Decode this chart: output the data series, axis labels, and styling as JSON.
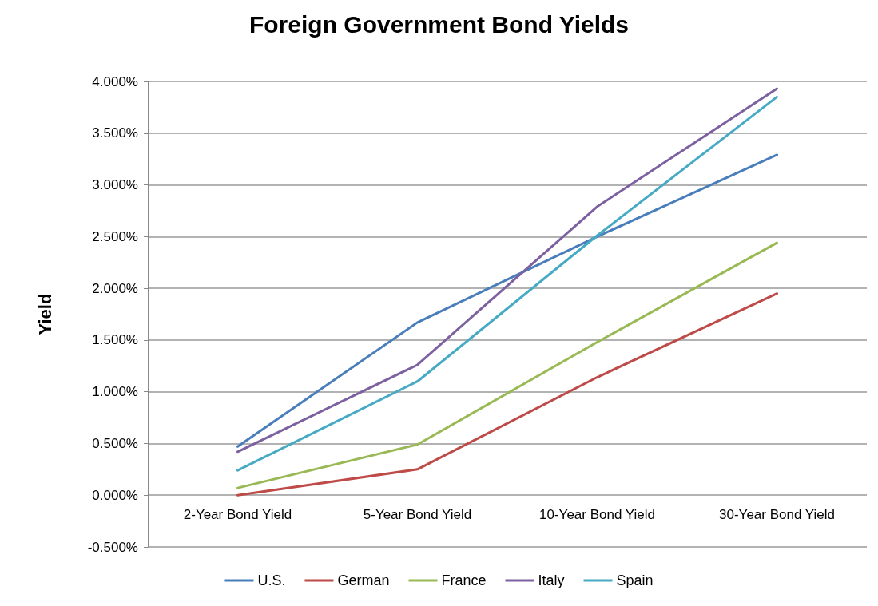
{
  "chart_data": {
    "type": "line",
    "title": "Foreign Government Bond Yields",
    "ylabel": "Yield",
    "categories": [
      "2-Year Bond Yield",
      "5-Year Bond Yield",
      "10-Year Bond Yield",
      "30-Year Bond Yield"
    ],
    "series": [
      {
        "name": "U.S.",
        "color": "#4a7ebb",
        "values": [
          0.47,
          1.67,
          2.5,
          3.29
        ]
      },
      {
        "name": "German",
        "color": "#be4b48",
        "values": [
          0.0,
          0.25,
          1.14,
          1.95
        ]
      },
      {
        "name": "France",
        "color": "#98b954",
        "values": [
          0.07,
          0.49,
          1.48,
          2.44
        ]
      },
      {
        "name": "Italy",
        "color": "#7d60a0",
        "values": [
          0.42,
          1.26,
          2.79,
          3.93
        ]
      },
      {
        "name": "Spain",
        "color": "#46aac5",
        "values": [
          0.24,
          1.1,
          2.51,
          3.85
        ]
      }
    ],
    "ylim": [
      -0.5,
      4
    ],
    "yticks": [
      {
        "value": -0.5,
        "label": "-0.500%"
      },
      {
        "value": 0,
        "label": "0.000%"
      },
      {
        "value": 0.5,
        "label": "0.500%"
      },
      {
        "value": 1,
        "label": "1.000%"
      },
      {
        "value": 1.5,
        "label": "1.500%"
      },
      {
        "value": 2,
        "label": "2.000%"
      },
      {
        "value": 2.5,
        "label": "2.500%"
      },
      {
        "value": 3,
        "label": "3.000%"
      },
      {
        "value": 3.5,
        "label": "3.500%"
      },
      {
        "value": 4,
        "label": "4.000%"
      }
    ],
    "grid": "y",
    "legend": "bottom",
    "marker": "none",
    "line_style": "solid"
  }
}
